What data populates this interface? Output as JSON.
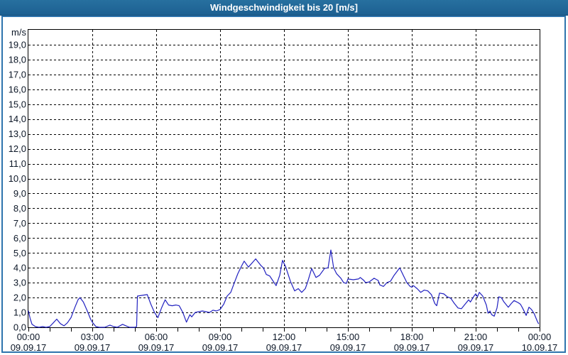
{
  "window": {
    "title": "Windgeschwindigkeit bis 20 [m/s]"
  },
  "colors": {
    "titlebar_bg": "#21669a",
    "titlebar_text": "#ffffff",
    "frame_border": "#2e74ad",
    "plot_bg": "#ffffff",
    "grid": "#000000",
    "axis_border": "#000000",
    "label_text": "#0b1626",
    "series": "#2121c0"
  },
  "chart_data": {
    "type": "line",
    "title": "Windgeschwindigkeit bis 20 [m/s]",
    "ylabel": "m/s",
    "xlabel": "",
    "ylim": [
      0,
      20
    ],
    "xlim": [
      0,
      24
    ],
    "grid": "dashed",
    "legend": "none",
    "y_axis": {
      "unit_label": "m/s",
      "tick_step": 1.0,
      "tick_labels": [
        "0,0",
        "1,0",
        "2,0",
        "3,0",
        "4,0",
        "5,0",
        "6,0",
        "7,0",
        "8,0",
        "9,0",
        "10,0",
        "11,0",
        "12,0",
        "13,0",
        "14,0",
        "15,0",
        "16,0",
        "17,0",
        "18,0",
        "19,0"
      ]
    },
    "x_axis": {
      "minor_tick_every_hours": 1,
      "grid_hours": [
        3,
        6,
        9,
        12,
        15,
        18,
        21
      ],
      "labels": [
        {
          "hour": 0,
          "time": "00:00",
          "date": "09.09.17"
        },
        {
          "hour": 3,
          "time": "03:00",
          "date": "09.09.17"
        },
        {
          "hour": 6,
          "time": "06:00",
          "date": "09.09.17"
        },
        {
          "hour": 9,
          "time": "09:00",
          "date": "09.09.17"
        },
        {
          "hour": 12,
          "time": "12:00",
          "date": "09.09.17"
        },
        {
          "hour": 15,
          "time": "15:00",
          "date": "09.09.17"
        },
        {
          "hour": 18,
          "time": "18:00",
          "date": "09.09.17"
        },
        {
          "hour": 21,
          "time": "21:00",
          "date": "09.09.17"
        },
        {
          "hour": 24,
          "time": "00:00",
          "date": "10.09.17"
        }
      ]
    },
    "series": [
      {
        "name": "Windgeschwindigkeit",
        "unit": "m/s",
        "points": [
          [
            0.0,
            1.1
          ],
          [
            0.08,
            0.6
          ],
          [
            0.17,
            0.2
          ],
          [
            0.33,
            0.05
          ],
          [
            0.5,
            0.0
          ],
          [
            0.67,
            0.05
          ],
          [
            0.83,
            0.0
          ],
          [
            1.0,
            0.05
          ],
          [
            1.17,
            0.3
          ],
          [
            1.33,
            0.55
          ],
          [
            1.5,
            0.25
          ],
          [
            1.67,
            0.1
          ],
          [
            1.83,
            0.3
          ],
          [
            2.0,
            0.65
          ],
          [
            2.17,
            1.3
          ],
          [
            2.33,
            1.85
          ],
          [
            2.42,
            2.0
          ],
          [
            2.58,
            1.7
          ],
          [
            2.75,
            1.15
          ],
          [
            2.92,
            0.55
          ],
          [
            3.0,
            0.35
          ],
          [
            3.17,
            0.05
          ],
          [
            3.33,
            0.0
          ],
          [
            3.58,
            0.0
          ],
          [
            3.83,
            0.15
          ],
          [
            4.0,
            0.05
          ],
          [
            4.17,
            0.0
          ],
          [
            4.42,
            0.2
          ],
          [
            4.58,
            0.1
          ],
          [
            4.75,
            0.0
          ],
          [
            5.0,
            0.0
          ],
          [
            5.08,
            0.05
          ],
          [
            5.12,
            2.1
          ],
          [
            5.33,
            2.15
          ],
          [
            5.58,
            2.2
          ],
          [
            5.75,
            1.55
          ],
          [
            5.92,
            1.0
          ],
          [
            6.08,
            0.65
          ],
          [
            6.25,
            1.3
          ],
          [
            6.42,
            1.85
          ],
          [
            6.58,
            1.5
          ],
          [
            6.75,
            1.45
          ],
          [
            6.92,
            1.5
          ],
          [
            7.08,
            1.45
          ],
          [
            7.25,
            1.0
          ],
          [
            7.42,
            0.35
          ],
          [
            7.58,
            0.85
          ],
          [
            7.67,
            0.7
          ],
          [
            7.83,
            1.0
          ],
          [
            8.0,
            1.05
          ],
          [
            8.17,
            1.1
          ],
          [
            8.33,
            1.05
          ],
          [
            8.5,
            1.0
          ],
          [
            8.67,
            1.15
          ],
          [
            8.83,
            1.1
          ],
          [
            9.0,
            1.2
          ],
          [
            9.17,
            1.55
          ],
          [
            9.33,
            2.1
          ],
          [
            9.5,
            2.35
          ],
          [
            9.67,
            3.0
          ],
          [
            9.83,
            3.6
          ],
          [
            10.0,
            4.1
          ],
          [
            10.13,
            4.45
          ],
          [
            10.33,
            4.05
          ],
          [
            10.67,
            4.6
          ],
          [
            10.92,
            4.15
          ],
          [
            11.03,
            4.0
          ],
          [
            11.17,
            3.55
          ],
          [
            11.33,
            3.45
          ],
          [
            11.63,
            2.8
          ],
          [
            11.8,
            3.5
          ],
          [
            11.93,
            4.5
          ],
          [
            12.07,
            4.1
          ],
          [
            12.3,
            3.1
          ],
          [
            12.5,
            2.45
          ],
          [
            12.67,
            2.6
          ],
          [
            12.83,
            2.35
          ],
          [
            13.0,
            2.6
          ],
          [
            13.1,
            3.0
          ],
          [
            13.3,
            3.95
          ],
          [
            13.5,
            3.35
          ],
          [
            13.67,
            3.5
          ],
          [
            13.9,
            3.95
          ],
          [
            14.07,
            4.0
          ],
          [
            14.2,
            5.2
          ],
          [
            14.33,
            4.0
          ],
          [
            14.47,
            3.6
          ],
          [
            14.67,
            3.3
          ],
          [
            14.8,
            3.0
          ],
          [
            14.93,
            2.95
          ],
          [
            15.0,
            3.25
          ],
          [
            15.25,
            3.2
          ],
          [
            15.5,
            3.25
          ],
          [
            15.58,
            3.35
          ],
          [
            15.75,
            3.15
          ],
          [
            15.83,
            3.0
          ],
          [
            16.0,
            3.05
          ],
          [
            16.23,
            3.3
          ],
          [
            16.42,
            3.15
          ],
          [
            16.5,
            2.85
          ],
          [
            16.67,
            2.75
          ],
          [
            16.83,
            3.0
          ],
          [
            17.0,
            3.1
          ],
          [
            17.17,
            3.5
          ],
          [
            17.33,
            3.8
          ],
          [
            17.43,
            4.0
          ],
          [
            17.6,
            3.5
          ],
          [
            17.77,
            3.0
          ],
          [
            17.92,
            2.75
          ],
          [
            18.0,
            2.7
          ],
          [
            18.08,
            2.8
          ],
          [
            18.25,
            2.6
          ],
          [
            18.42,
            2.35
          ],
          [
            18.58,
            2.5
          ],
          [
            18.75,
            2.45
          ],
          [
            18.92,
            2.2
          ],
          [
            19.08,
            1.6
          ],
          [
            19.17,
            1.45
          ],
          [
            19.3,
            2.3
          ],
          [
            19.5,
            2.25
          ],
          [
            19.67,
            2.05
          ],
          [
            19.83,
            1.95
          ],
          [
            20.0,
            1.6
          ],
          [
            20.17,
            1.3
          ],
          [
            20.33,
            1.25
          ],
          [
            20.5,
            1.55
          ],
          [
            20.67,
            1.85
          ],
          [
            20.75,
            1.7
          ],
          [
            20.92,
            2.1
          ],
          [
            21.0,
            2.25
          ],
          [
            21.08,
            2.05
          ],
          [
            21.17,
            2.35
          ],
          [
            21.33,
            2.1
          ],
          [
            21.5,
            1.5
          ],
          [
            21.58,
            0.95
          ],
          [
            21.67,
            1.1
          ],
          [
            21.75,
            0.85
          ],
          [
            21.87,
            0.75
          ],
          [
            22.0,
            1.3
          ],
          [
            22.08,
            2.05
          ],
          [
            22.2,
            2.0
          ],
          [
            22.33,
            1.7
          ],
          [
            22.53,
            1.35
          ],
          [
            22.67,
            1.6
          ],
          [
            22.8,
            1.8
          ],
          [
            23.0,
            1.65
          ],
          [
            23.1,
            1.55
          ],
          [
            23.2,
            1.3
          ],
          [
            23.37,
            0.8
          ],
          [
            23.5,
            1.35
          ],
          [
            23.62,
            1.2
          ],
          [
            23.75,
            0.9
          ],
          [
            23.88,
            0.45
          ],
          [
            23.95,
            0.25
          ]
        ]
      }
    ]
  }
}
